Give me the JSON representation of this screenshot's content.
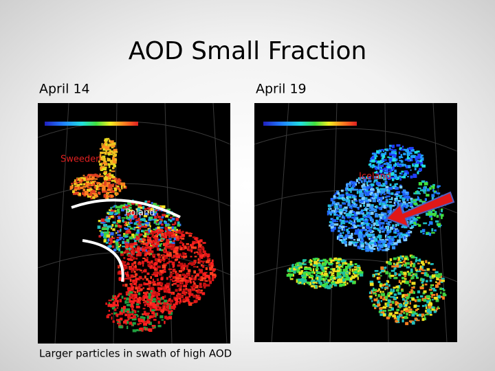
{
  "header": {
    "title": "AOD Small Fraction"
  },
  "panels": [
    {
      "label": "April 14",
      "annotations": [
        "Sweeden",
        "Poland"
      ]
    },
    {
      "label": "April 19",
      "annotations": [
        "Iceland"
      ]
    }
  ],
  "caption": "Larger particles in swath of high AOD"
}
